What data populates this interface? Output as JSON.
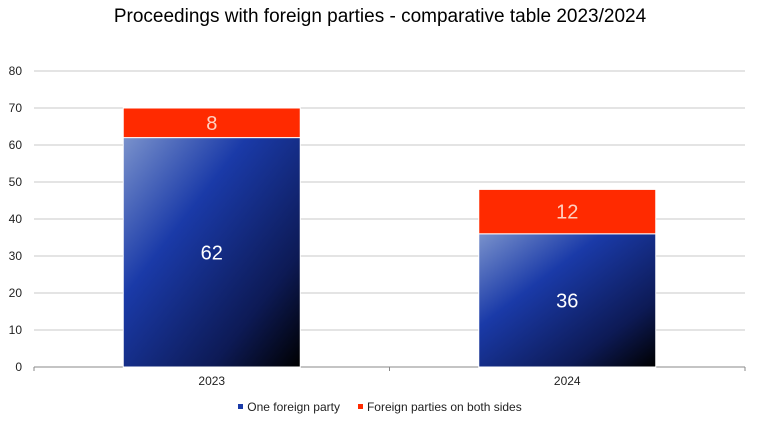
{
  "chart_data": {
    "type": "bar",
    "stacked": true,
    "title": "Proceedings with foreign parties - comparative table 2023/2024",
    "categories": [
      "2023",
      "2024"
    ],
    "series": [
      {
        "name": "One foreign party",
        "values": [
          62,
          36
        ],
        "color": "#1a3aa8",
        "label_color": "#ffffff"
      },
      {
        "name": "Foreign parties on both sides",
        "values": [
          8,
          12
        ],
        "color": "#ff2a00",
        "label_color": "#ffd0c0"
      }
    ],
    "ylim": [
      0,
      80
    ],
    "yticks": [
      0,
      10,
      20,
      30,
      40,
      50,
      60,
      70,
      80
    ],
    "grid": true,
    "legend_position": "bottom"
  }
}
